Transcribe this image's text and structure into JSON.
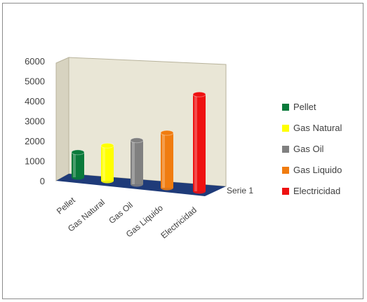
{
  "chart_data": {
    "type": "bar",
    "style": "3d-cylinder",
    "categories": [
      "Pellet",
      "Gas Natural",
      "Gas Oil",
      "Gas Liquido",
      "Electricidad"
    ],
    "series_axis_label": "Serie 1",
    "series": [
      {
        "values": [
          1250,
          1760,
          2200,
          2750,
          4850
        ]
      }
    ],
    "colors": [
      "#0a7a3a",
      "#ffff00",
      "#808080",
      "#f07c10",
      "#ee1111"
    ],
    "ylim": [
      0,
      6000
    ],
    "yticks": [
      0,
      1000,
      2000,
      3000,
      4000,
      5000,
      6000
    ],
    "legend": {
      "position": "right",
      "entries": [
        "Pellet",
        "Gas Natural",
        "Gas Oil",
        "Gas Liquido",
        "Electricidad"
      ]
    },
    "grid": false,
    "colors_meta": {
      "wall": "#e9e6d6",
      "floor": "#1f3b79"
    }
  }
}
